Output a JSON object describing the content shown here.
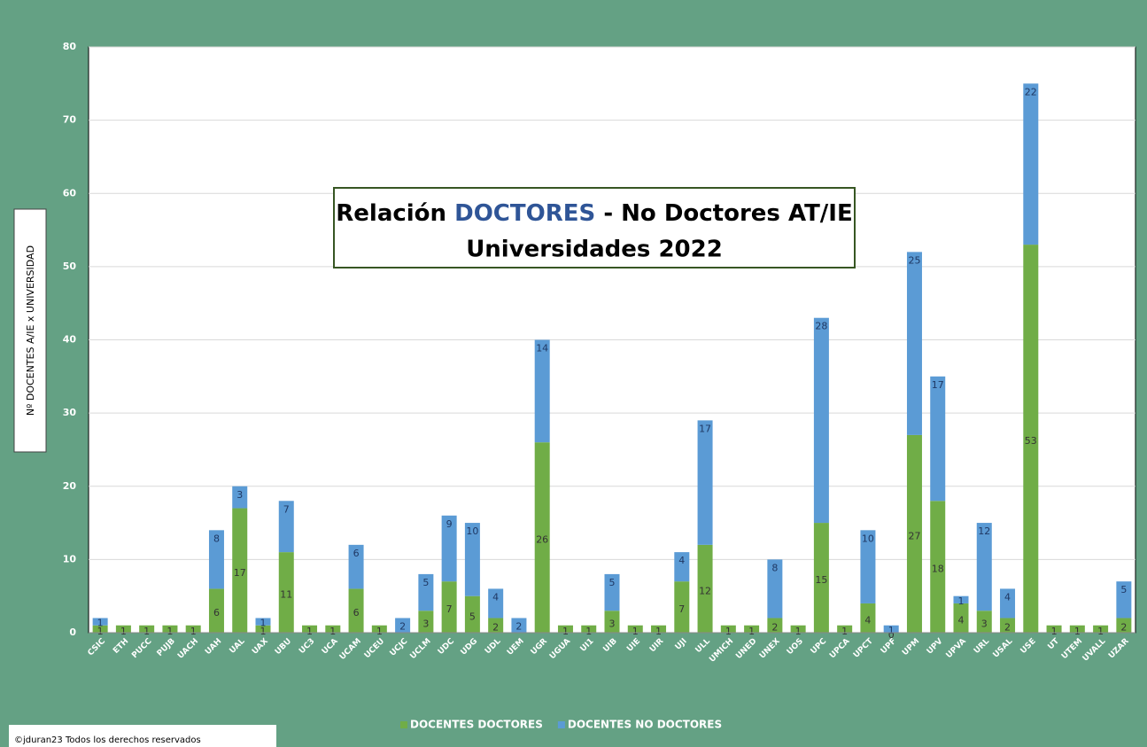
{
  "chart_data": {
    "type": "stacked_bar",
    "title": {
      "line1": [
        "Relación",
        "DOCTORES",
        "- No Doctores AT/IE"
      ],
      "line2": "Universidades 2022"
    },
    "y_label": "Nº DOCENTES A/IE x UNIVERSIDAD",
    "footer": "©jduran23 Todos los derechos reservados",
    "categories": [
      "CSIC",
      "ETH",
      "PUCC",
      "PUJB",
      "UACH",
      "UAH",
      "UAL",
      "UAX",
      "UBU",
      "UC3",
      "UCA",
      "UCAM",
      "UCEU",
      "UCJC",
      "UCLM",
      "UDC",
      "UDG",
      "UDL",
      "UEM",
      "UGR",
      "UGUA",
      "UI1",
      "UIB",
      "UIE",
      "UIR",
      "UJI",
      "ULL",
      "UMICH",
      "UNED",
      "UNEX",
      "UOS",
      "UPC",
      "UPCA",
      "UPCT",
      "UPF",
      "UPM",
      "UPV",
      "UPVA",
      "URL",
      "USAL",
      "USE",
      "UT",
      "UTEM",
      "UVALL",
      "UZAR"
    ],
    "series": [
      {
        "name": "DOCENTES DOCTORES",
        "color": "#70ad47",
        "values": [
          1,
          1,
          1,
          1,
          1,
          6,
          17,
          1,
          11,
          1,
          1,
          6,
          1,
          null,
          3,
          7,
          5,
          2,
          null,
          26,
          1,
          1,
          3,
          1,
          1,
          7,
          12,
          1,
          1,
          2,
          1,
          15,
          1,
          4,
          0,
          27,
          18,
          4,
          3,
          2,
          53,
          1,
          1,
          1,
          2
        ]
      },
      {
        "name": "DOCENTES NO DOCTORES",
        "color": "#5b9bd5",
        "values": [
          1,
          null,
          null,
          null,
          null,
          8,
          3,
          1,
          7,
          null,
          null,
          6,
          null,
          2,
          5,
          9,
          10,
          4,
          2,
          14,
          null,
          null,
          5,
          null,
          null,
          4,
          17,
          null,
          null,
          8,
          null,
          28,
          null,
          10,
          1,
          25,
          17,
          1,
          12,
          4,
          22,
          null,
          null,
          null,
          5
        ]
      }
    ],
    "ylim": [
      0,
      80
    ],
    "yticks": [
      0,
      10,
      20,
      30,
      40,
      50,
      60,
      70,
      80
    ],
    "grid": true,
    "legend": "bottom"
  }
}
